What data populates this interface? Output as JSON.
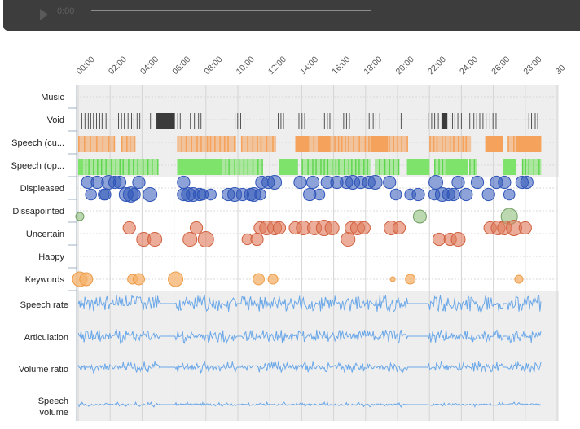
{
  "player": {
    "time": "0:00",
    "progress": 0,
    "play_icon": "play-icon"
  },
  "axis": {
    "ticks": [
      "00:00",
      "02:00",
      "04:00",
      "06:00",
      "08:00",
      "10:00",
      "12:00",
      "14:00",
      "16:00",
      "18:00",
      "20:00",
      "22:00",
      "24:00",
      "26:00",
      "28:00",
      "30"
    ],
    "range_minutes": [
      0,
      29.4
    ]
  },
  "rows": {
    "music": "Music",
    "void": "Void",
    "speech_cu": "Speech (cu...",
    "speech_op": "Speech (op...",
    "displeased": "Displeased",
    "dissapointed": "Dissapointed",
    "uncertain": "Uncertain",
    "happy": "Happy",
    "keywords": "Keywords",
    "speech_rate": "Speech rate",
    "articulation": "Articulation",
    "volume_ratio": "Volume ratio",
    "speech_volume_1": "Speech",
    "speech_volume_2": "volume"
  },
  "colors": {
    "void": "#3b3b3b",
    "speech_cu": "#f5a35c",
    "speech_op": "#7ee36a",
    "displeased": "#2f55b8",
    "dissapointed": "#8fbf7f",
    "uncertain": "#e07858",
    "keywords": "#f6b26b",
    "line": "#6aa7e8",
    "band": "#eeeeee"
  },
  "events": {
    "displeased": [
      [
        0.6,
        0,
        9
      ],
      [
        1.2,
        0,
        9
      ],
      [
        0.8,
        1,
        8
      ],
      [
        1.6,
        1,
        8
      ],
      [
        1.9,
        0,
        10
      ],
      [
        2.3,
        0,
        9
      ],
      [
        2.6,
        0,
        9
      ],
      [
        1.7,
        1,
        8
      ],
      [
        3.0,
        1,
        10
      ],
      [
        3.3,
        1,
        11
      ],
      [
        3.5,
        1,
        9
      ],
      [
        3.8,
        0,
        9
      ],
      [
        4.5,
        1,
        10
      ],
      [
        6.6,
        0,
        9
      ],
      [
        6.6,
        1,
        9
      ],
      [
        6.9,
        1,
        10
      ],
      [
        7.2,
        1,
        10
      ],
      [
        7.6,
        1,
        9
      ],
      [
        7.8,
        1,
        8
      ],
      [
        8.3,
        1,
        8
      ],
      [
        9.4,
        1,
        9
      ],
      [
        9.8,
        1,
        10
      ],
      [
        10.3,
        1,
        9
      ],
      [
        10.8,
        1,
        9
      ],
      [
        11.0,
        1,
        10
      ],
      [
        11.4,
        1,
        8
      ],
      [
        11.9,
        0,
        9
      ],
      [
        12.3,
        0,
        10
      ],
      [
        11.5,
        0,
        9
      ],
      [
        13.9,
        0,
        9
      ],
      [
        14.5,
        1,
        9
      ],
      [
        14.7,
        0,
        9
      ],
      [
        15.1,
        1,
        8
      ],
      [
        15.6,
        0,
        9
      ],
      [
        16.2,
        0,
        9
      ],
      [
        16.8,
        0,
        9
      ],
      [
        17.2,
        0,
        10
      ],
      [
        17.7,
        0,
        9
      ],
      [
        18.2,
        0,
        9
      ],
      [
        18.6,
        0,
        10
      ],
      [
        19.5,
        0,
        9
      ],
      [
        19.9,
        1,
        8
      ],
      [
        20.8,
        1,
        8
      ],
      [
        21.3,
        1,
        9
      ],
      [
        22.4,
        0,
        10
      ],
      [
        22.3,
        1,
        8
      ],
      [
        22.8,
        1,
        10
      ],
      [
        23.2,
        1,
        9
      ],
      [
        23.5,
        1,
        9
      ],
      [
        23.8,
        0,
        9
      ],
      [
        24.3,
        1,
        9
      ],
      [
        25.0,
        0,
        9
      ],
      [
        25.7,
        1,
        9
      ],
      [
        26.2,
        0,
        9
      ],
      [
        26.7,
        0,
        9
      ],
      [
        27.0,
        1,
        8
      ],
      [
        27.8,
        0,
        9
      ],
      [
        28.1,
        0,
        9
      ]
    ],
    "dissapointed": [
      [
        0.1,
        5
      ],
      [
        21.4,
        8
      ],
      [
        27.0,
        10
      ]
    ],
    "uncertain": [
      [
        3.2,
        0,
        8
      ],
      [
        4.1,
        1,
        9
      ],
      [
        4.8,
        1,
        9
      ],
      [
        7.4,
        0,
        8
      ],
      [
        7.0,
        1,
        9
      ],
      [
        8.0,
        1,
        10
      ],
      [
        10.6,
        1,
        7
      ],
      [
        11.4,
        0,
        8
      ],
      [
        11.8,
        0,
        9
      ],
      [
        11.2,
        1,
        8
      ],
      [
        12.3,
        0,
        9
      ],
      [
        12.6,
        0,
        8
      ],
      [
        13.6,
        0,
        8
      ],
      [
        14.1,
        0,
        9
      ],
      [
        14.8,
        0,
        9
      ],
      [
        15.4,
        0,
        10
      ],
      [
        15.9,
        0,
        9
      ],
      [
        16.9,
        1,
        9
      ],
      [
        17.1,
        0,
        8
      ],
      [
        17.5,
        0,
        9
      ],
      [
        17.9,
        0,
        8
      ],
      [
        19.6,
        0,
        9
      ],
      [
        20.1,
        0,
        8
      ],
      [
        22.6,
        1,
        8
      ],
      [
        23.3,
        1,
        8
      ],
      [
        23.8,
        1,
        9
      ],
      [
        25.8,
        0,
        8
      ],
      [
        26.3,
        0,
        9
      ],
      [
        26.7,
        0,
        9
      ],
      [
        27.3,
        0,
        10
      ],
      [
        28.0,
        0,
        8
      ]
    ],
    "keywords": [
      [
        0.1,
        9
      ],
      [
        0.5,
        8
      ],
      [
        3.4,
        6
      ],
      [
        3.8,
        7
      ],
      [
        6.1,
        9
      ],
      [
        11.3,
        7
      ],
      [
        12.2,
        6
      ],
      [
        19.7,
        3
      ],
      [
        20.8,
        6
      ],
      [
        27.6,
        5
      ]
    ]
  }
}
